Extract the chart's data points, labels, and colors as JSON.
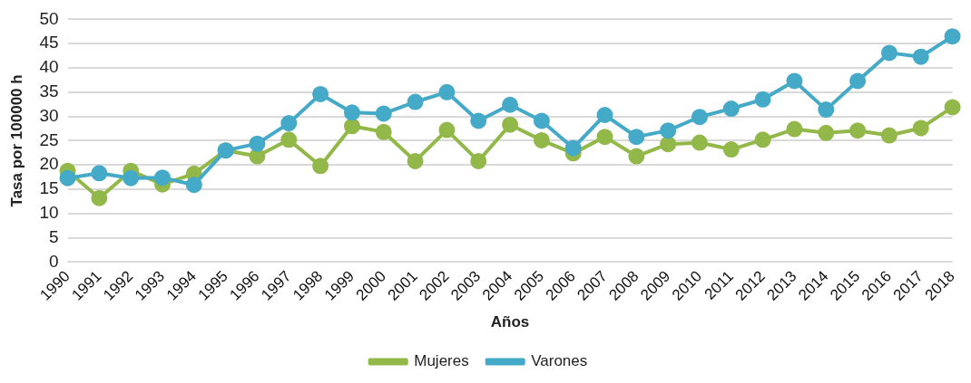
{
  "chart_data": {
    "type": "line",
    "xlabel": "Años",
    "ylabel": "Tasa por 100000 h",
    "categories": [
      "1990",
      "1991",
      "1992",
      "1993",
      "1994",
      "1995",
      "1996",
      "1997",
      "1998",
      "1999",
      "2000",
      "2001",
      "2002",
      "2003",
      "2004",
      "2005",
      "2006",
      "2007",
      "2008",
      "2009",
      "2010",
      "2011",
      "2012",
      "2013",
      "2014",
      "2015",
      "2016",
      "2017",
      "2018"
    ],
    "series": [
      {
        "name": "Mujeres",
        "color": "#92b84a",
        "values": [
          18.8,
          13.2,
          18.8,
          16,
          18.2,
          23,
          21.8,
          25.2,
          19.8,
          28,
          26.8,
          20.8,
          27.2,
          20.8,
          28.3,
          25.1,
          22.4,
          25.8,
          21.8,
          24.3,
          24.6,
          23.2,
          25.2,
          27.4,
          26.6,
          27.1,
          26.1,
          27.6,
          31.9
        ]
      },
      {
        "name": "Varones",
        "color": "#45a9c8",
        "values": [
          17.3,
          18.3,
          17.3,
          17.4,
          15.9,
          23,
          24.4,
          28.6,
          34.6,
          30.8,
          30.6,
          33,
          35,
          29.1,
          32.4,
          29.1,
          23.5,
          30.3,
          25.8,
          27.1,
          29.9,
          31.6,
          33.5,
          37.3,
          31.4,
          37.3,
          43.1,
          42.3,
          46.5
        ]
      }
    ],
    "ylim": [
      0,
      50
    ],
    "yticks": [
      0,
      5,
      10,
      15,
      20,
      25,
      30,
      35,
      40,
      45,
      50
    ],
    "grid": "y",
    "legend": "bottom",
    "marker": "circle",
    "line_style": "solid"
  }
}
